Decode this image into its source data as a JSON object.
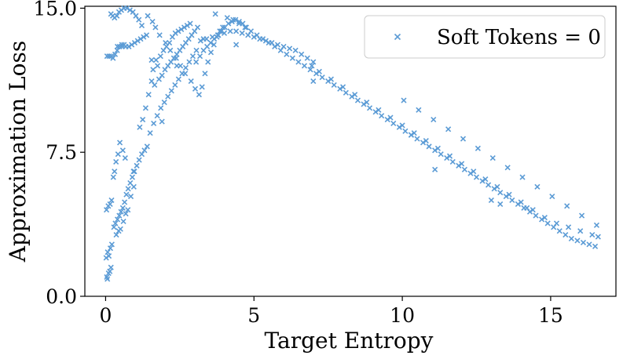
{
  "chart_data": {
    "type": "scatter",
    "xlabel": "Target Entropy",
    "ylabel": "Approximation Loss",
    "xlim": [
      -0.7,
      17.2
    ],
    "ylim": [
      0,
      15.1
    ],
    "xticks": [
      "0",
      "5",
      "10",
      "15"
    ],
    "yticks": [
      "0.0",
      "7.5",
      "15.0"
    ],
    "grid": false,
    "legend": {
      "placement": "top-right"
    },
    "series": [
      {
        "name": "Soft Tokens = 0",
        "marker": "x",
        "color": "#5b9bd5",
        "x": [
          0.04,
          0.06,
          0.1,
          0.14,
          0.18,
          0.02,
          0.07,
          0.11,
          0.16,
          0.21,
          0.03,
          0.09,
          0.15,
          0.2,
          0.26,
          0.3,
          0.35,
          0.42,
          0.05,
          0.12,
          0.19,
          0.25,
          0.32,
          0.39,
          0.47,
          0.55,
          0.62,
          0.28,
          0.33,
          0.4,
          0.46,
          0.52,
          0.58,
          0.64,
          0.7,
          0.76,
          0.83,
          0.9,
          0.97,
          1.05,
          1.13,
          1.22,
          1.31,
          1.4,
          0.36,
          0.44,
          0.5,
          0.6,
          0.68,
          0.75,
          0.85,
          0.95,
          0.3,
          0.38,
          0.45,
          0.53,
          0.62,
          0.72,
          0.82,
          0.92,
          1.02,
          1.12,
          1.22,
          0.4,
          0.55,
          0.68,
          0.78,
          0.88,
          0.98,
          1.08,
          1.18,
          1.28,
          1.38,
          0.18,
          0.24,
          0.48,
          0.58,
          0.66,
          0.94,
          1.15,
          1.25,
          1.35,
          1.45,
          1.55,
          1.6,
          1.7,
          1.75,
          1.85,
          1.95,
          2.05,
          2.15,
          2.25,
          2.35,
          2.45,
          2.55,
          2.65,
          2.75,
          2.85,
          1.65,
          1.8,
          1.9,
          2.0,
          2.1,
          2.2,
          2.3,
          2.4,
          2.5,
          2.6,
          2.7,
          2.8,
          2.9,
          3.0,
          3.1,
          1.5,
          1.62,
          1.74,
          1.86,
          1.98,
          2.1,
          2.22,
          2.34,
          2.46,
          2.58,
          2.7,
          2.82,
          2.94,
          3.06,
          1.42,
          1.58,
          1.68,
          1.82,
          2.02,
          2.18,
          2.38,
          2.52,
          2.68,
          2.88,
          3.02,
          3.15,
          3.25,
          3.35,
          3.45,
          3.55,
          3.65,
          3.75,
          3.85,
          3.95,
          3.05,
          3.18,
          3.3,
          3.42,
          3.54,
          3.66,
          3.78,
          3.9,
          4.02,
          4.14,
          4.26,
          4.38,
          4.5,
          4.62,
          4.74,
          3.2,
          3.4,
          3.6,
          3.8,
          4.0,
          4.2,
          4.4,
          4.6,
          4.8,
          5.0,
          5.2,
          5.4,
          5.6,
          5.8,
          6.0,
          6.2,
          6.4,
          6.6,
          6.8,
          7.0,
          4.1,
          4.3,
          4.5,
          4.7,
          4.9,
          5.1,
          5.3,
          5.5,
          5.7,
          5.9,
          6.1,
          6.3,
          6.5,
          6.7,
          6.9,
          7.1,
          7.3,
          7.5,
          7.7,
          7.9,
          8.1,
          8.3,
          8.5,
          8.7,
          8.9,
          9.1,
          9.3,
          9.5,
          9.7,
          9.9,
          10.1,
          10.3,
          10.5,
          10.7,
          10.9,
          11.1,
          11.3,
          11.5,
          11.7,
          11.9,
          12.1,
          12.3,
          12.5,
          12.7,
          12.9,
          13.1,
          13.3,
          13.5,
          13.7,
          13.9,
          14.1,
          14.3,
          14.5,
          14.7,
          14.9,
          15.1,
          15.3,
          15.5,
          15.7,
          15.9,
          16.1,
          16.3,
          16.5,
          7.2,
          7.6,
          8.0,
          8.4,
          8.8,
          9.2,
          9.6,
          10.0,
          10.4,
          10.8,
          11.2,
          11.6,
          12.0,
          12.4,
          12.8,
          13.2,
          13.6,
          14.0,
          14.4,
          14.8,
          15.2,
          15.6,
          16.0,
          16.4,
          16.6,
          10.05,
          10.55,
          11.05,
          11.55,
          12.05,
          12.55,
          13.05,
          13.55,
          14.05,
          14.55,
          15.05,
          15.55,
          16.05,
          16.55,
          6.95,
          10.3,
          11.1,
          13.0,
          14.2,
          13.3,
          7.0,
          3.3,
          3.7,
          4.4,
          2.4,
          1.9,
          1.55
        ],
        "y": [
          1.0,
          0.9,
          1.2,
          1.3,
          1.5,
          2.0,
          2.3,
          2.1,
          2.5,
          2.7,
          4.5,
          4.7,
          4.8,
          5.0,
          6.2,
          6.5,
          7.0,
          7.4,
          12.5,
          12.5,
          12.5,
          12.4,
          12.6,
          12.8,
          13.0,
          13.1,
          13.1,
          3.6,
          3.8,
          4.0,
          4.2,
          4.4,
          4.6,
          4.9,
          5.3,
          5.6,
          5.9,
          6.2,
          6.5,
          6.8,
          7.1,
          7.4,
          7.6,
          7.8,
          3.2,
          3.4,
          3.5,
          3.9,
          4.3,
          4.5,
          5.2,
          5.7,
          14.5,
          14.6,
          14.8,
          14.9,
          15.0,
          15.0,
          14.9,
          14.8,
          14.6,
          14.4,
          14.1,
          13.0,
          13.0,
          13.0,
          13.0,
          13.1,
          13.2,
          13.3,
          13.4,
          13.5,
          13.6,
          14.7,
          14.6,
          8.0,
          7.6,
          7.2,
          6.5,
          8.8,
          9.2,
          9.8,
          10.5,
          11.2,
          11.8,
          12.3,
          12.0,
          12.5,
          12.8,
          13.0,
          13.2,
          13.5,
          13.7,
          13.8,
          13.9,
          14.0,
          14.1,
          14.2,
          11.0,
          11.3,
          11.5,
          11.8,
          12.0,
          12.2,
          12.4,
          12.6,
          12.8,
          13.0,
          13.2,
          13.4,
          13.6,
          13.8,
          14.0,
          8.5,
          9.0,
          9.4,
          9.8,
          10.1,
          10.4,
          10.7,
          11.0,
          11.3,
          11.6,
          11.9,
          12.2,
          12.5,
          12.8,
          14.6,
          14.3,
          14.0,
          13.6,
          13.2,
          12.8,
          12.4,
          12.0,
          11.6,
          11.2,
          10.8,
          10.5,
          10.9,
          11.6,
          12.2,
          12.7,
          13.1,
          13.5,
          13.8,
          14.0,
          12.2,
          12.5,
          12.8,
          13.0,
          13.2,
          13.4,
          13.6,
          13.8,
          14.0,
          14.2,
          14.3,
          14.4,
          14.3,
          14.2,
          14.0,
          13.3,
          13.4,
          13.5,
          13.6,
          13.7,
          13.8,
          13.8,
          13.7,
          13.6,
          13.5,
          13.4,
          13.3,
          13.2,
          13.1,
          13.0,
          12.9,
          12.8,
          12.6,
          12.4,
          12.2,
          14.5,
          14.4,
          14.2,
          14.0,
          13.8,
          13.6,
          13.4,
          13.2,
          13.0,
          12.8,
          12.6,
          12.4,
          12.2,
          12.0,
          11.8,
          11.6,
          11.4,
          11.2,
          11.0,
          10.8,
          10.6,
          10.4,
          10.2,
          10.0,
          9.8,
          9.6,
          9.4,
          9.2,
          9.0,
          8.8,
          8.6,
          8.4,
          8.2,
          8.0,
          7.8,
          7.6,
          7.4,
          7.2,
          7.0,
          6.8,
          6.6,
          6.4,
          6.2,
          6.0,
          5.8,
          5.6,
          5.4,
          5.2,
          5.0,
          4.8,
          4.6,
          4.4,
          4.2,
          4.0,
          3.8,
          3.6,
          3.4,
          3.2,
          3.0,
          2.9,
          2.8,
          2.7,
          2.6,
          11.7,
          11.3,
          10.9,
          10.5,
          10.1,
          9.7,
          9.3,
          8.9,
          8.5,
          8.1,
          7.7,
          7.3,
          6.9,
          6.5,
          6.1,
          5.7,
          5.3,
          4.9,
          4.5,
          4.1,
          3.8,
          3.6,
          3.4,
          3.2,
          3.1,
          10.2,
          9.7,
          9.2,
          8.7,
          8.2,
          7.7,
          7.2,
          6.7,
          6.2,
          5.7,
          5.2,
          4.7,
          4.2,
          3.7,
          12.0,
          8.4,
          6.6,
          5.0,
          4.6,
          4.8,
          11.2,
          13.4,
          14.7,
          13.1,
          12.0,
          9.1,
          12.3
        ]
      }
    ]
  }
}
